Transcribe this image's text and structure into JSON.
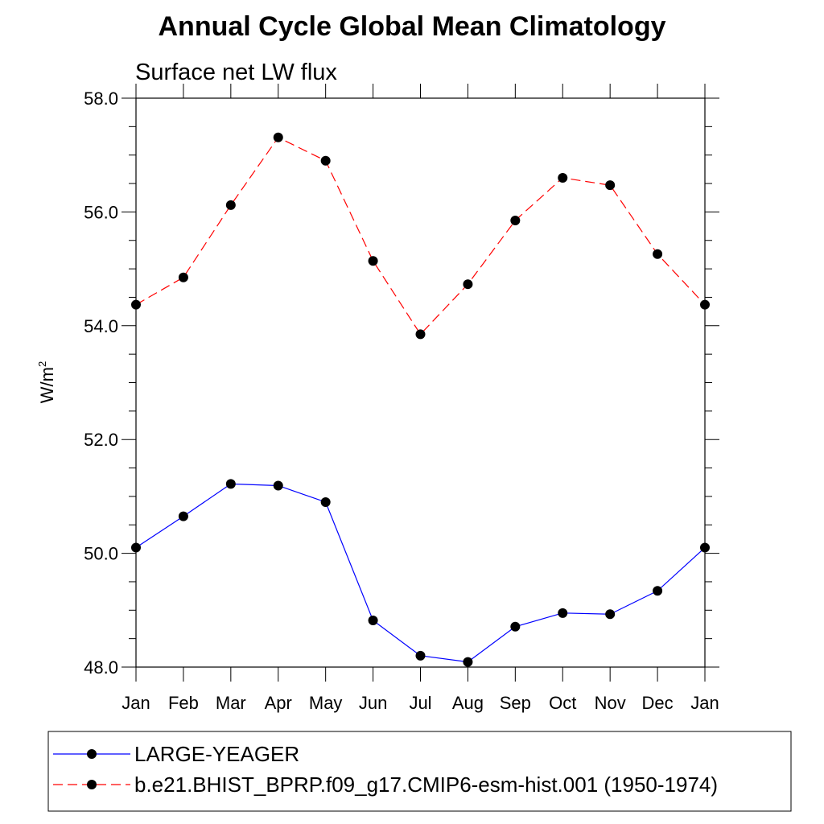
{
  "chart_data": {
    "type": "line",
    "title": "Annual Cycle Global Mean Climatology",
    "subtitle": "Surface net LW flux",
    "ylabel": "W/m",
    "ylabel_sup": "2",
    "xlabel": "",
    "categories": [
      "Jan",
      "Feb",
      "Mar",
      "Apr",
      "May",
      "Jun",
      "Jul",
      "Aug",
      "Sep",
      "Oct",
      "Nov",
      "Dec",
      "Jan"
    ],
    "ylim": [
      48.0,
      58.0
    ],
    "yticks": [
      "48.0",
      "50.0",
      "52.0",
      "54.0",
      "56.0",
      "58.0"
    ],
    "grid": false,
    "legend_position": "bottom",
    "series": [
      {
        "name": "LARGE-YEAGER",
        "color": "#0000ff",
        "dash": "solid",
        "values": [
          50.1,
          50.65,
          51.22,
          51.19,
          50.9,
          48.82,
          48.2,
          48.09,
          48.71,
          48.95,
          48.93,
          49.34,
          50.1
        ]
      },
      {
        "name": "b.e21.BHIST_BPRP.f09_g17.CMIP6-esm-hist.001 (1950-1974)",
        "color": "#ff0000",
        "dash": "dashed",
        "values": [
          54.37,
          54.85,
          56.12,
          57.31,
          56.9,
          55.14,
          53.85,
          54.73,
          55.85,
          56.6,
          56.47,
          55.26,
          54.37
        ]
      }
    ]
  }
}
